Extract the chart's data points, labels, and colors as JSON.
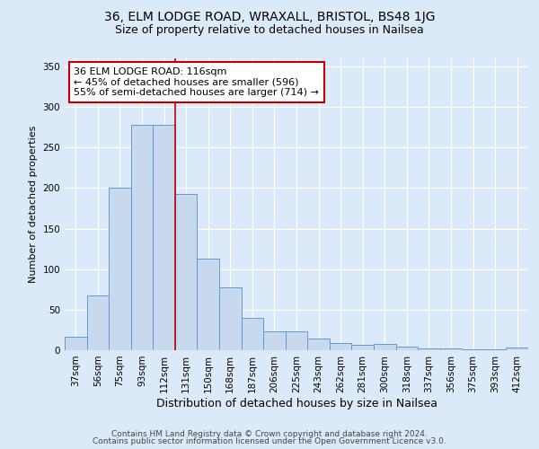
{
  "title1": "36, ELM LODGE ROAD, WRAXALL, BRISTOL, BS48 1JG",
  "title2": "Size of property relative to detached houses in Nailsea",
  "xlabel": "Distribution of detached houses by size in Nailsea",
  "ylabel": "Number of detached properties",
  "categories": [
    "37sqm",
    "56sqm",
    "75sqm",
    "93sqm",
    "112sqm",
    "131sqm",
    "150sqm",
    "168sqm",
    "187sqm",
    "206sqm",
    "225sqm",
    "243sqm",
    "262sqm",
    "281sqm",
    "300sqm",
    "318sqm",
    "337sqm",
    "356sqm",
    "375sqm",
    "393sqm",
    "412sqm"
  ],
  "values": [
    17,
    68,
    200,
    278,
    278,
    193,
    113,
    77,
    40,
    23,
    23,
    14,
    9,
    7,
    8,
    4,
    2,
    2,
    1,
    1,
    3
  ],
  "bar_color": "#c8d9ed",
  "bar_edge_color": "#5b9bd5",
  "vline_x": 4.5,
  "vline_color": "#c00000",
  "annotation_line1": "36 ELM LODGE ROAD: 116sqm",
  "annotation_line2": "← 45% of detached houses are smaller (596)",
  "annotation_line3": "55% of semi-detached houses are larger (714) →",
  "annotation_box_color": "white",
  "annotation_box_edge_color": "#c00000",
  "ylim": [
    0,
    360
  ],
  "yticks": [
    0,
    50,
    100,
    150,
    200,
    250,
    300,
    350
  ],
  "background_color": "#dce9f8",
  "grid_color": "white",
  "footer1": "Contains HM Land Registry data © Crown copyright and database right 2024.",
  "footer2": "Contains public sector information licensed under the Open Government Licence v3.0.",
  "title1_fontsize": 10,
  "title2_fontsize": 9,
  "xlabel_fontsize": 9,
  "ylabel_fontsize": 8,
  "tick_fontsize": 7.5,
  "annotation_fontsize": 8,
  "footer_fontsize": 6.5
}
